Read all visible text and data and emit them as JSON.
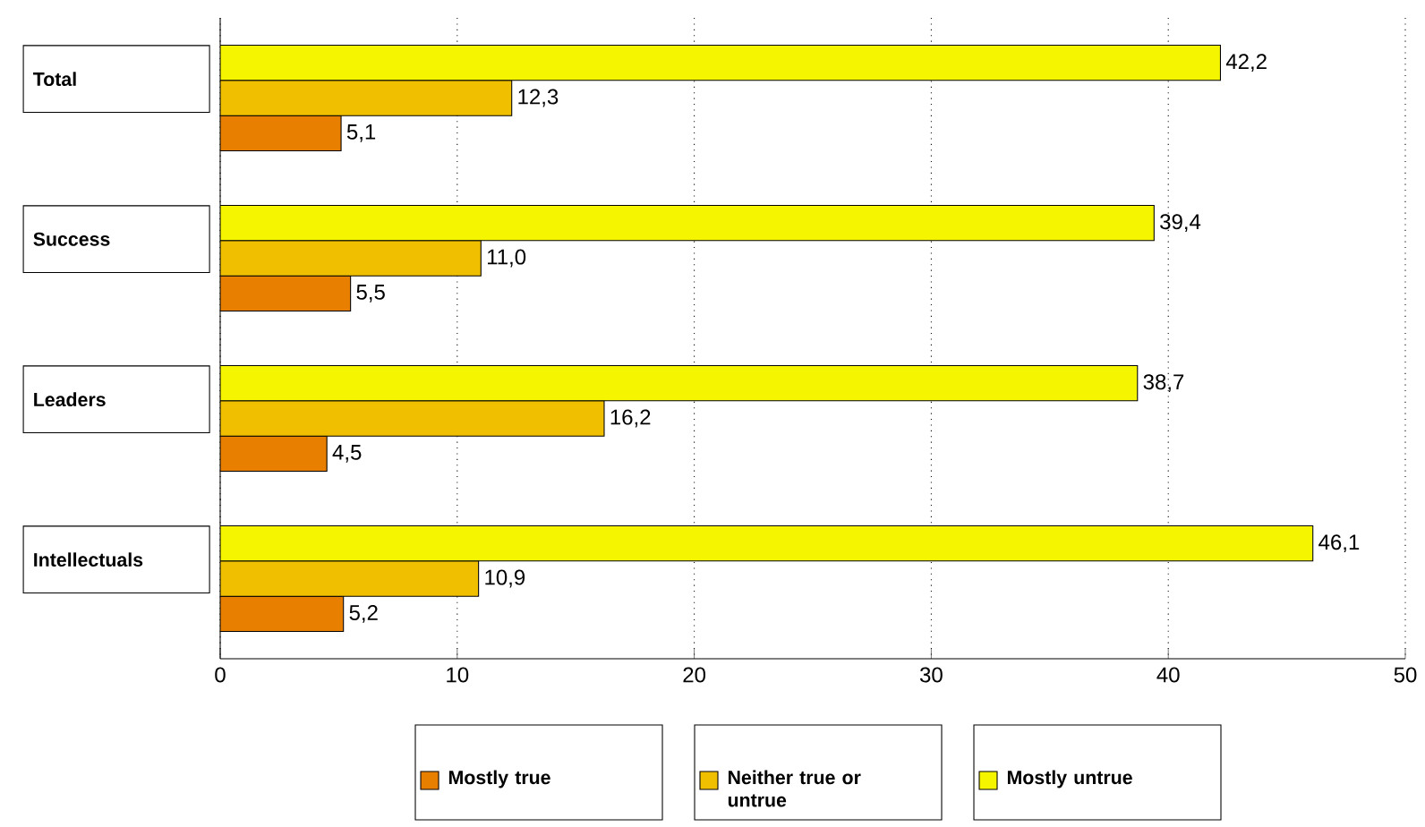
{
  "chart_data": {
    "type": "bar",
    "orientation": "horizontal",
    "categories": [
      "Total",
      "Success",
      "Leaders",
      "Intellectuals"
    ],
    "series": [
      {
        "name": "Mostly true",
        "color": "#e87f00",
        "values": [
          5.1,
          5.5,
          4.5,
          5.2
        ],
        "value_labels": [
          "5,1",
          "5,5",
          "4,5",
          "5,2"
        ]
      },
      {
        "name": "Neither true or untrue",
        "color": "#f0c000",
        "values": [
          12.3,
          11.0,
          16.2,
          10.9
        ],
        "value_labels": [
          "12,3",
          "11,0",
          "16,2",
          "10,9"
        ]
      },
      {
        "name": "Mostly untrue",
        "color": "#f5f500",
        "values": [
          42.2,
          39.4,
          38.7,
          46.1
        ],
        "value_labels": [
          "42,2",
          "39,4",
          "38,7",
          "46,1"
        ]
      }
    ],
    "xlim": [
      0,
      50
    ],
    "xticks": [
      0,
      10,
      20,
      30,
      40,
      50
    ],
    "grid": "x",
    "legend": "bottom"
  }
}
